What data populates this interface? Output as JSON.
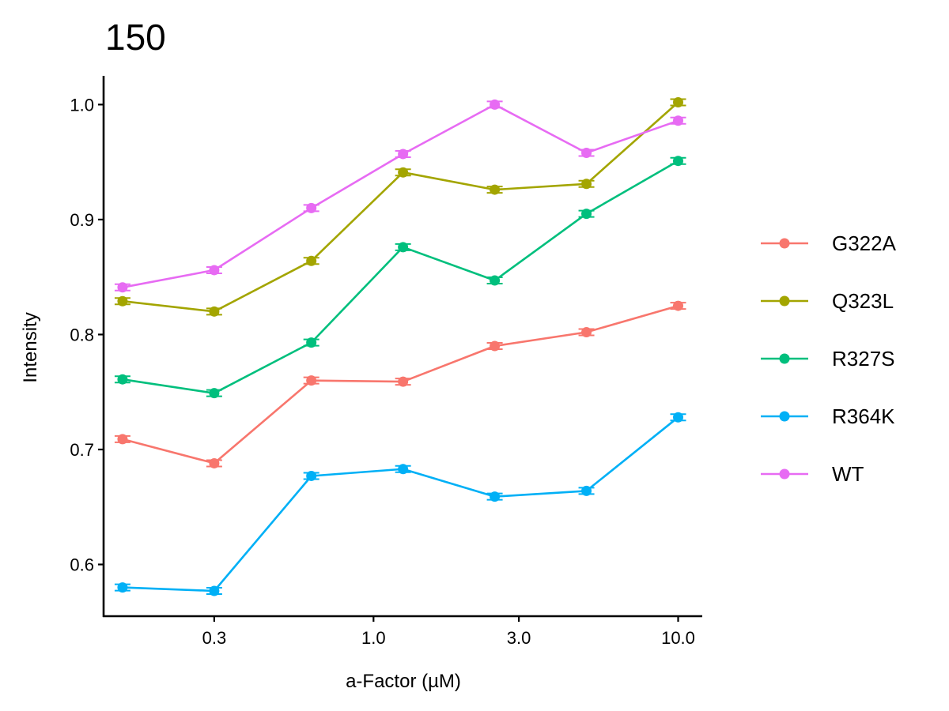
{
  "chart_data": {
    "type": "line",
    "title": "150",
    "xlabel": "a-Factor (µM)",
    "ylabel": "Intensity",
    "x_scale": "log",
    "x": [
      0.15,
      0.3,
      0.625,
      1.25,
      2.5,
      5,
      10
    ],
    "xlim": [
      0.13,
      12
    ],
    "x_ticks": [
      0.3,
      1.0,
      3.0,
      10.0
    ],
    "x_tick_labels": [
      "0.3",
      "1.0",
      "3.0",
      "10.0"
    ],
    "ylim": [
      0.555,
      1.025
    ],
    "y_ticks": [
      0.6,
      0.7,
      0.8,
      0.9,
      1.0
    ],
    "y_tick_labels": [
      "0.6",
      "0.7",
      "0.8",
      "0.9",
      "1.0"
    ],
    "grid": false,
    "legend_position": "right",
    "series": [
      {
        "name": "G322A",
        "color": "#F8766D",
        "values": [
          0.709,
          0.688,
          0.76,
          0.759,
          0.79,
          0.802,
          0.825
        ]
      },
      {
        "name": "Q323L",
        "color": "#A3A500",
        "values": [
          0.829,
          0.82,
          0.864,
          0.941,
          0.926,
          0.931,
          1.002
        ]
      },
      {
        "name": "R327S",
        "color": "#00BF7D",
        "values": [
          0.761,
          0.749,
          0.793,
          0.876,
          0.847,
          0.905,
          0.951
        ]
      },
      {
        "name": "R364K",
        "color": "#00B0F6",
        "values": [
          0.58,
          0.577,
          0.677,
          0.683,
          0.659,
          0.664,
          0.728
        ]
      },
      {
        "name": "WT",
        "color": "#E76BF3",
        "values": [
          0.841,
          0.856,
          0.91,
          0.957,
          1.0,
          0.958,
          0.986
        ]
      }
    ]
  }
}
